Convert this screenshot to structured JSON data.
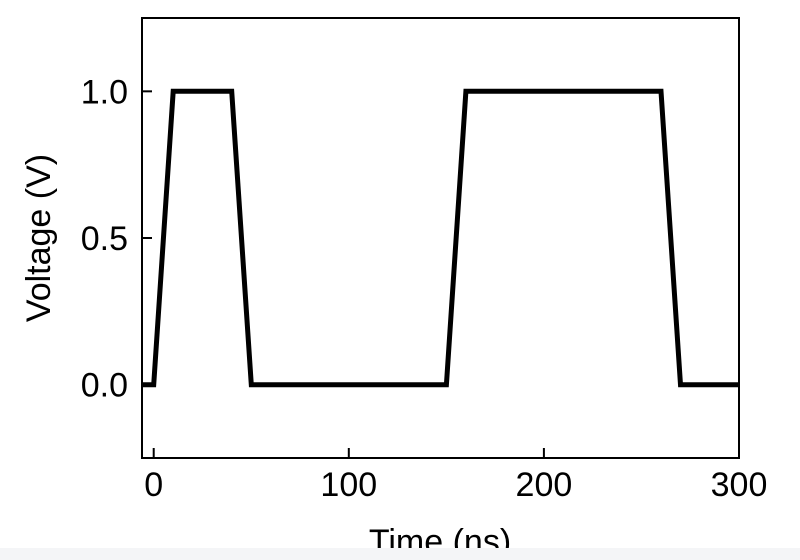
{
  "chart_data": {
    "type": "line",
    "title": "",
    "xlabel": "Time (ns)",
    "ylabel": "Voltage (V)",
    "xlim": [
      -6,
      300
    ],
    "ylim": [
      -0.25,
      1.25
    ],
    "xticks": [
      0,
      100,
      200,
      300
    ],
    "xtick_labels": [
      "0",
      "100",
      "200",
      "300"
    ],
    "yticks": [
      0.0,
      0.5,
      1.0
    ],
    "ytick_labels": [
      "0.0",
      "0.5",
      "1.0"
    ],
    "grid": false,
    "legend": "none",
    "series": [
      {
        "color": "#000000",
        "x": [
          -6,
          0,
          10,
          40,
          50,
          150,
          160,
          260,
          270,
          300
        ],
        "y": [
          0,
          0,
          1,
          1,
          0,
          0,
          1,
          1,
          0,
          0
        ]
      }
    ]
  }
}
